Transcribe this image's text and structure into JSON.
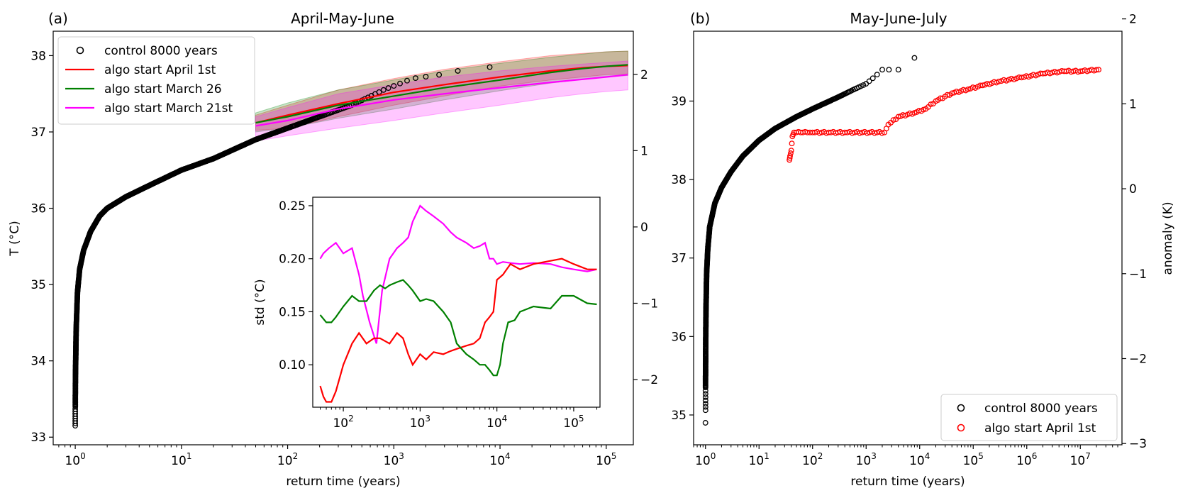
{
  "chart_data": [
    {
      "panel": "(a)",
      "type": "scatter",
      "title": "April-May-June",
      "xlabel": "return time (years)",
      "ylabel": "T (°C)",
      "ylabel_right": "",
      "xscale": "log",
      "xlim": [
        0.62,
        180000
      ],
      "ylim": [
        32.9,
        38.32
      ],
      "y2lim": [
        -2.855,
        2.565
      ],
      "x_ticks": [
        {
          "v": 1,
          "base": "10",
          "exp": "0"
        },
        {
          "v": 10,
          "base": "10",
          "exp": "1"
        },
        {
          "v": 100,
          "base": "10",
          "exp": "2"
        },
        {
          "v": 1000,
          "base": "10",
          "exp": "3"
        },
        {
          "v": 10000,
          "base": "10",
          "exp": "4"
        },
        {
          "v": 100000,
          "base": "10",
          "exp": "5"
        }
      ],
      "y_ticks": [
        "33",
        "34",
        "35",
        "36",
        "37",
        "38"
      ],
      "y2_ticks": [
        "−2",
        "−1",
        "0",
        "1",
        "2"
      ],
      "legend": {
        "position": "top-left",
        "entries": [
          {
            "label": "control 8000 years",
            "kind": "marker",
            "color": "#000000"
          },
          {
            "label": "algo start April 1st",
            "kind": "line",
            "color": "#ff0000"
          },
          {
            "label": "algo start March 26",
            "kind": "line",
            "color": "#008000"
          },
          {
            "label": "algo start March 21st",
            "kind": "line",
            "color": "#ff00ff"
          }
        ]
      },
      "control_curve": {
        "description": "empirical return-time curve of 8000-year control run",
        "points": [
          [
            1.0,
            33.15
          ],
          [
            1.001,
            33.4
          ],
          [
            1.005,
            33.8
          ],
          [
            1.02,
            34.4
          ],
          [
            1.05,
            34.9
          ],
          [
            1.1,
            35.2
          ],
          [
            1.2,
            35.45
          ],
          [
            1.4,
            35.7
          ],
          [
            1.7,
            35.9
          ],
          [
            2,
            36.0
          ],
          [
            3,
            36.15
          ],
          [
            5,
            36.3
          ],
          [
            10,
            36.5
          ],
          [
            20,
            36.65
          ],
          [
            50,
            36.9
          ],
          [
            100,
            37.05
          ],
          [
            200,
            37.2
          ],
          [
            400,
            37.35
          ],
          [
            800,
            37.55
          ],
          [
            1500,
            37.7
          ],
          [
            2700,
            37.75
          ],
          [
            4000,
            37.8
          ],
          [
            8000,
            37.85
          ]
        ]
      },
      "series": [
        {
          "name": "algo start April 1st",
          "color": "#ff0000",
          "x": [
            50,
            100,
            300,
            1000,
            3000,
            10000,
            30000,
            60000,
            100000,
            160000
          ],
          "values": [
            37.12,
            37.22,
            37.37,
            37.52,
            37.62,
            37.72,
            37.8,
            37.84,
            37.86,
            37.87
          ],
          "lower": [
            37.02,
            37.05,
            37.2,
            37.35,
            37.47,
            37.6,
            37.68,
            37.72,
            37.75,
            37.76
          ],
          "upper": [
            37.22,
            37.35,
            37.55,
            37.7,
            37.82,
            37.92,
            38.0,
            38.03,
            38.05,
            38.06
          ]
        },
        {
          "name": "algo start March 26",
          "color": "#008000",
          "x": [
            50,
            100,
            300,
            1000,
            3000,
            10000,
            30000,
            60000,
            100000,
            160000
          ],
          "values": [
            37.12,
            37.2,
            37.35,
            37.47,
            37.58,
            37.68,
            37.78,
            37.83,
            37.86,
            37.88
          ],
          "lower": [
            37.0,
            37.05,
            37.18,
            37.3,
            37.42,
            37.54,
            37.64,
            37.69,
            37.72,
            37.74
          ],
          "upper": [
            37.25,
            37.38,
            37.55,
            37.68,
            37.8,
            37.9,
            37.98,
            38.02,
            38.05,
            38.06
          ]
        },
        {
          "name": "algo start March 21st",
          "color": "#ff00ff",
          "x": [
            50,
            100,
            300,
            1000,
            3000,
            10000,
            30000,
            60000,
            100000,
            160000
          ],
          "values": [
            37.08,
            37.15,
            37.3,
            37.42,
            37.5,
            37.58,
            37.65,
            37.69,
            37.72,
            37.75
          ],
          "lower": [
            36.88,
            36.95,
            37.05,
            37.15,
            37.25,
            37.35,
            37.45,
            37.5,
            37.53,
            37.55
          ],
          "upper": [
            37.2,
            37.32,
            37.5,
            37.62,
            37.72,
            37.8,
            37.86,
            37.89,
            37.91,
            37.93
          ]
        }
      ],
      "inset": {
        "type": "line",
        "xlabel": "",
        "ylabel": "std (°C)",
        "xscale": "log",
        "xlim": [
          40,
          220000
        ],
        "ylim": [
          0.06,
          0.258
        ],
        "x_ticks": [
          {
            "v": 100,
            "base": "10",
            "exp": "2"
          },
          {
            "v": 1000,
            "base": "10",
            "exp": "3"
          },
          {
            "v": 10000,
            "base": "10",
            "exp": "4"
          },
          {
            "v": 100000,
            "base": "10",
            "exp": "5"
          }
        ],
        "y_ticks": [
          "0.10",
          "0.15",
          "0.20",
          "0.25"
        ],
        "series": [
          {
            "name": "algo start March 21st",
            "color": "#ff00ff",
            "x": [
              50,
              55,
              65,
              80,
              100,
              130,
              160,
              180,
              220,
              270,
              320,
              400,
              500,
              600,
              700,
              800,
              1000,
              1200,
              1500,
              2000,
              2500,
              3000,
              4000,
              5000,
              6000,
              7000,
              8000,
              9000,
              10000,
              12000,
              15000,
              20000,
              30000,
              50000,
              70000,
              100000,
              150000,
              200000
            ],
            "values": [
              0.2,
              0.205,
              0.21,
              0.215,
              0.205,
              0.21,
              0.185,
              0.165,
              0.14,
              0.12,
              0.17,
              0.2,
              0.21,
              0.215,
              0.22,
              0.235,
              0.25,
              0.245,
              0.24,
              0.233,
              0.225,
              0.22,
              0.215,
              0.21,
              0.212,
              0.215,
              0.2,
              0.2,
              0.195,
              0.197,
              0.196,
              0.195,
              0.196,
              0.195,
              0.192,
              0.19,
              0.188,
              0.19
            ]
          },
          {
            "name": "algo start April 1st",
            "color": "#ff0000",
            "x": [
              50,
              55,
              60,
              70,
              80,
              100,
              130,
              160,
              200,
              250,
              300,
              400,
              500,
              600,
              700,
              800,
              1000,
              1200,
              1500,
              2000,
              2500,
              3000,
              4000,
              5000,
              6000,
              7000,
              8000,
              9000,
              10000,
              12000,
              15000,
              20000,
              30000,
              50000,
              70000,
              100000,
              150000,
              200000
            ],
            "values": [
              0.08,
              0.07,
              0.065,
              0.065,
              0.075,
              0.1,
              0.12,
              0.13,
              0.12,
              0.125,
              0.125,
              0.12,
              0.13,
              0.125,
              0.11,
              0.1,
              0.11,
              0.105,
              0.112,
              0.11,
              0.113,
              0.115,
              0.118,
              0.12,
              0.125,
              0.14,
              0.145,
              0.15,
              0.18,
              0.185,
              0.195,
              0.19,
              0.195,
              0.198,
              0.2,
              0.195,
              0.19,
              0.19
            ]
          },
          {
            "name": "algo start March 26",
            "color": "#008000",
            "x": [
              50,
              60,
              70,
              80,
              100,
              130,
              160,
              200,
              250,
              300,
              350,
              400,
              500,
              600,
              700,
              800,
              1000,
              1200,
              1500,
              2000,
              2500,
              3000,
              4000,
              5000,
              6000,
              7000,
              8000,
              9000,
              10000,
              11000,
              12000,
              14000,
              17000,
              20000,
              30000,
              50000,
              70000,
              100000,
              150000,
              200000
            ],
            "values": [
              0.147,
              0.14,
              0.14,
              0.145,
              0.155,
              0.165,
              0.16,
              0.16,
              0.17,
              0.175,
              0.172,
              0.175,
              0.178,
              0.18,
              0.175,
              0.17,
              0.16,
              0.162,
              0.16,
              0.15,
              0.14,
              0.12,
              0.11,
              0.105,
              0.1,
              0.1,
              0.095,
              0.09,
              0.09,
              0.1,
              0.12,
              0.14,
              0.142,
              0.15,
              0.155,
              0.153,
              0.165,
              0.165,
              0.158,
              0.157
            ]
          }
        ]
      }
    },
    {
      "panel": "(b)",
      "type": "scatter",
      "title": "May-June-July",
      "xlabel": "return time (years)",
      "ylabel": "",
      "ylabel_right": "anomaly (K)",
      "xscale": "log",
      "xlim": [
        0.6,
        60000000
      ],
      "ylim": [
        34.62,
        39.89
      ],
      "y2lim": [
        -3.015,
        1.855
      ],
      "x_ticks": [
        {
          "v": 1,
          "base": "10",
          "exp": "0"
        },
        {
          "v": 10,
          "base": "10",
          "exp": "1"
        },
        {
          "v": 100,
          "base": "10",
          "exp": "2"
        },
        {
          "v": 1000,
          "base": "10",
          "exp": "3"
        },
        {
          "v": 10000,
          "base": "10",
          "exp": "4"
        },
        {
          "v": 100000,
          "base": "10",
          "exp": "5"
        },
        {
          "v": 1000000,
          "base": "10",
          "exp": "6"
        },
        {
          "v": 10000000,
          "base": "10",
          "exp": "7"
        }
      ],
      "y_ticks": [
        "35",
        "36",
        "37",
        "38",
        "39"
      ],
      "y2_ticks": [
        "−3",
        "−2",
        "−1",
        "0",
        "1",
        "2"
      ],
      "legend": {
        "position": "bottom-right",
        "entries": [
          {
            "label": "control 8000 years",
            "kind": "marker",
            "color": "#000000"
          },
          {
            "label": "algo start April 1st",
            "kind": "marker",
            "color": "#ff0000"
          }
        ]
      },
      "series": [
        {
          "name": "control 8000 years",
          "color": "#000000",
          "points": [
            [
              1.0,
              34.9
            ],
            [
              1.0,
              35.02
            ],
            [
              1.001,
              35.35
            ],
            [
              1.002,
              35.45
            ],
            [
              1.005,
              35.6
            ],
            [
              1.01,
              35.9
            ],
            [
              1.02,
              36.3
            ],
            [
              1.05,
              36.8
            ],
            [
              1.1,
              37.1
            ],
            [
              1.2,
              37.4
            ],
            [
              1.5,
              37.7
            ],
            [
              2,
              37.9
            ],
            [
              3,
              38.1
            ],
            [
              5,
              38.3
            ],
            [
              10,
              38.5
            ],
            [
              20,
              38.65
            ],
            [
              50,
              38.8
            ],
            [
              100,
              38.9
            ],
            [
              300,
              39.05
            ],
            [
              600,
              39.15
            ],
            [
              1000,
              39.22
            ],
            [
              1500,
              39.32
            ],
            [
              2000,
              39.4
            ],
            [
              2500,
              39.4
            ],
            [
              4000,
              39.4
            ],
            [
              8000,
              39.55
            ]
          ]
        },
        {
          "name": "algo start April 1st",
          "color": "#ff0000",
          "points": [
            [
              37,
              38.25
            ],
            [
              38,
              38.3
            ],
            [
              40,
              38.37
            ],
            [
              42,
              38.55
            ],
            [
              45,
              38.6
            ],
            [
              60,
              38.6
            ],
            [
              80,
              38.6
            ],
            [
              100,
              38.6
            ],
            [
              200,
              38.6
            ],
            [
              400,
              38.6
            ],
            [
              2200,
              38.6
            ],
            [
              2600,
              38.7
            ],
            [
              4000,
              38.8
            ],
            [
              8000,
              38.85
            ],
            [
              13000,
              38.9
            ],
            [
              20000,
              39.0
            ],
            [
              40000,
              39.1
            ],
            [
              80000,
              39.15
            ],
            [
              150000,
              39.2
            ],
            [
              300000,
              39.25
            ],
            [
              800000,
              39.3
            ],
            [
              2000000,
              39.35
            ],
            [
              5000000,
              39.38
            ],
            [
              10000000,
              39.38
            ],
            [
              22000000,
              39.4
            ]
          ]
        }
      ]
    }
  ]
}
